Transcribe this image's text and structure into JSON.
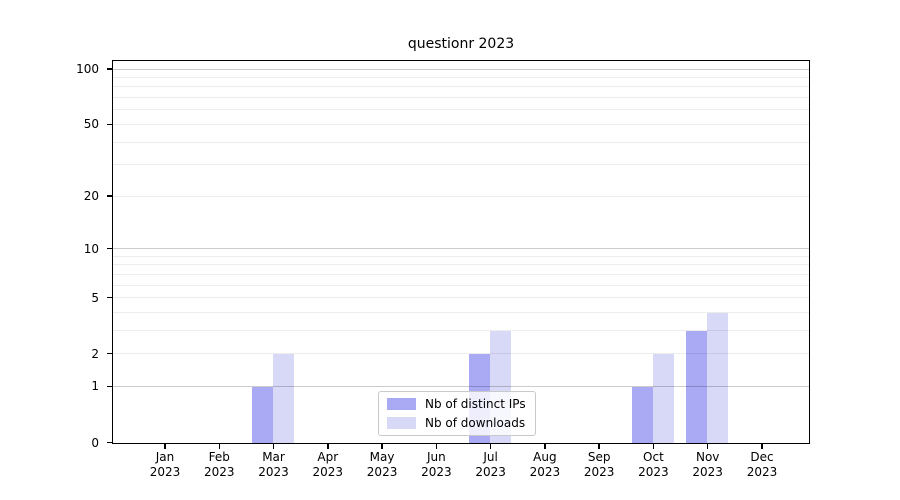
{
  "chart_data": {
    "type": "bar",
    "title": "questionr 2023",
    "categories": [
      "Jan",
      "Feb",
      "Mar",
      "Apr",
      "May",
      "Jun",
      "Jul",
      "Aug",
      "Sep",
      "Oct",
      "Nov",
      "Dec"
    ],
    "category_year": "2023",
    "series": [
      {
        "key": "distinct-ips",
        "name": "Nb of distinct IPs",
        "color": "#a9a9f4",
        "values": [
          0,
          0,
          1,
          0,
          0,
          0,
          2,
          0,
          0,
          1,
          3,
          0
        ]
      },
      {
        "key": "downloads",
        "name": "Nb of downloads",
        "color": "#d8d8f7",
        "values": [
          0,
          0,
          2,
          0,
          0,
          0,
          3,
          0,
          0,
          2,
          4,
          0
        ]
      }
    ],
    "y_axis": {
      "scale": "log1p",
      "ticks": [
        0,
        1,
        2,
        5,
        10,
        20,
        50,
        100
      ],
      "max": 110,
      "major_grid": [
        1,
        10,
        100
      ],
      "minor_grid": [
        2,
        3,
        4,
        5,
        6,
        7,
        8,
        9,
        20,
        30,
        40,
        50,
        60,
        70,
        80,
        90
      ]
    },
    "legend": {
      "position": "lower center"
    },
    "grid": true
  }
}
